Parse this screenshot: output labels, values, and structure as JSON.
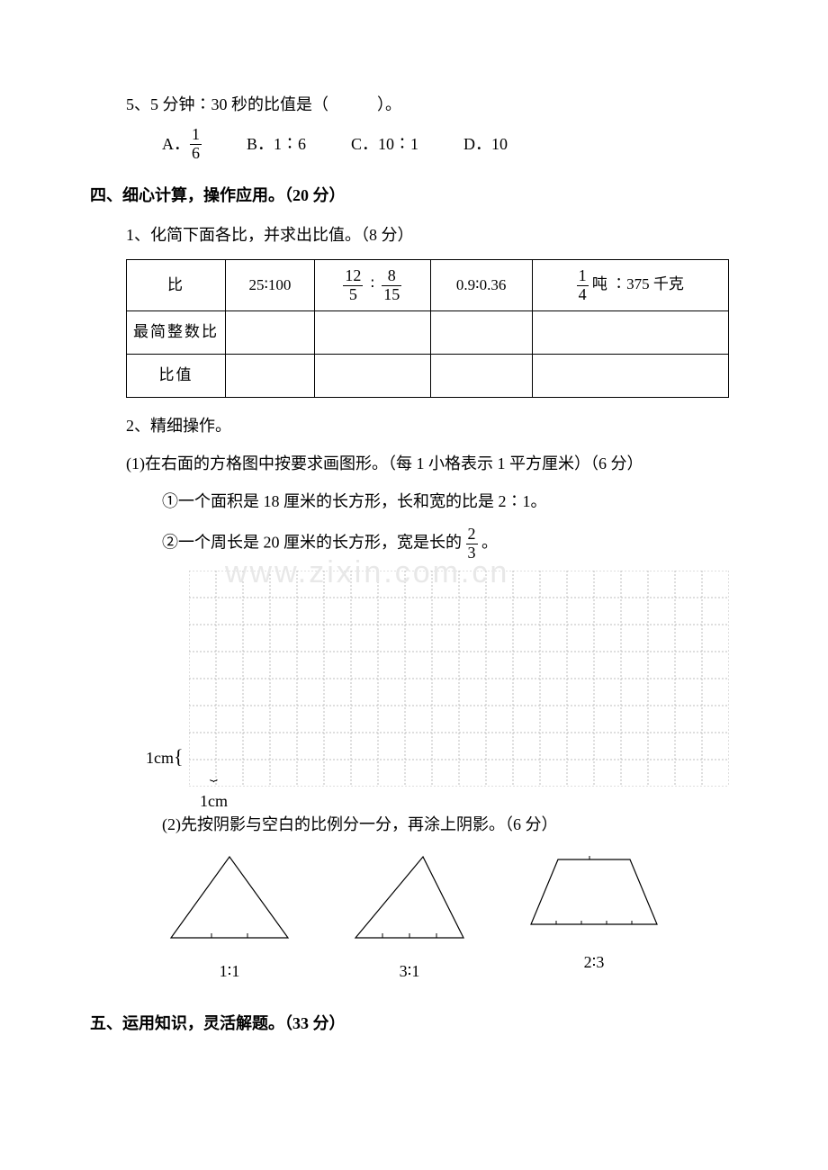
{
  "q5": {
    "text": "5、5 分钟∶30 秒的比值是（　　　）。",
    "options": {
      "a_prefix": "A．",
      "a_frac_num": "1",
      "a_frac_den": "6",
      "b": "B．1∶6",
      "c": "C．10∶1",
      "d": "D．10"
    }
  },
  "section4": {
    "title": "四、细心计算，操作应用。（20 分）",
    "q1": {
      "text": "1、化简下面各比，并求出比值。（8 分）",
      "table": {
        "row_labels": [
          "比",
          "最简整数比",
          "比值"
        ],
        "col1": "25∶100",
        "col2_frac1_num": "12",
        "col2_frac1_den": "5",
        "col2_mid": "∶",
        "col2_frac2_num": "8",
        "col2_frac2_den": "15",
        "col3": "0.9∶0.36",
        "col4_frac_num": "1",
        "col4_frac_den": "4",
        "col4_text": "吨 ∶375 千克"
      }
    },
    "q2": {
      "text": "2、精细操作。",
      "p1_intro": "(1)在右面的方格图中按要求画图形。（每 1 小格表示 1 平方厘米）（6 分）",
      "p1_a": "①一个面积是 18 厘米的长方形，长和宽的比是 2∶1。",
      "p1_b_prefix": "②一个周长是 20 厘米的长方形，宽是长的",
      "p1_b_frac_num": "2",
      "p1_b_frac_den": "3",
      "p1_b_suffix": "。",
      "p2_text": "(2)先按阴影与空白的比例分一分，再涂上阴影。（6 分）"
    }
  },
  "section5": {
    "title": "五、运用知识，灵活解题。（33 分）"
  },
  "grid": {
    "cols": 20,
    "rows": 8,
    "cell_size": 30,
    "stroke": "#bcbcbc",
    "dash": "2,2",
    "label_left": "1cm",
    "label_bottom": "1cm"
  },
  "shapes": {
    "stroke": "#000000",
    "stroke_width": 1.2,
    "labels": [
      "1∶1",
      "3∶1",
      "2∶3"
    ]
  },
  "watermark": "www.zixin.com.cn"
}
